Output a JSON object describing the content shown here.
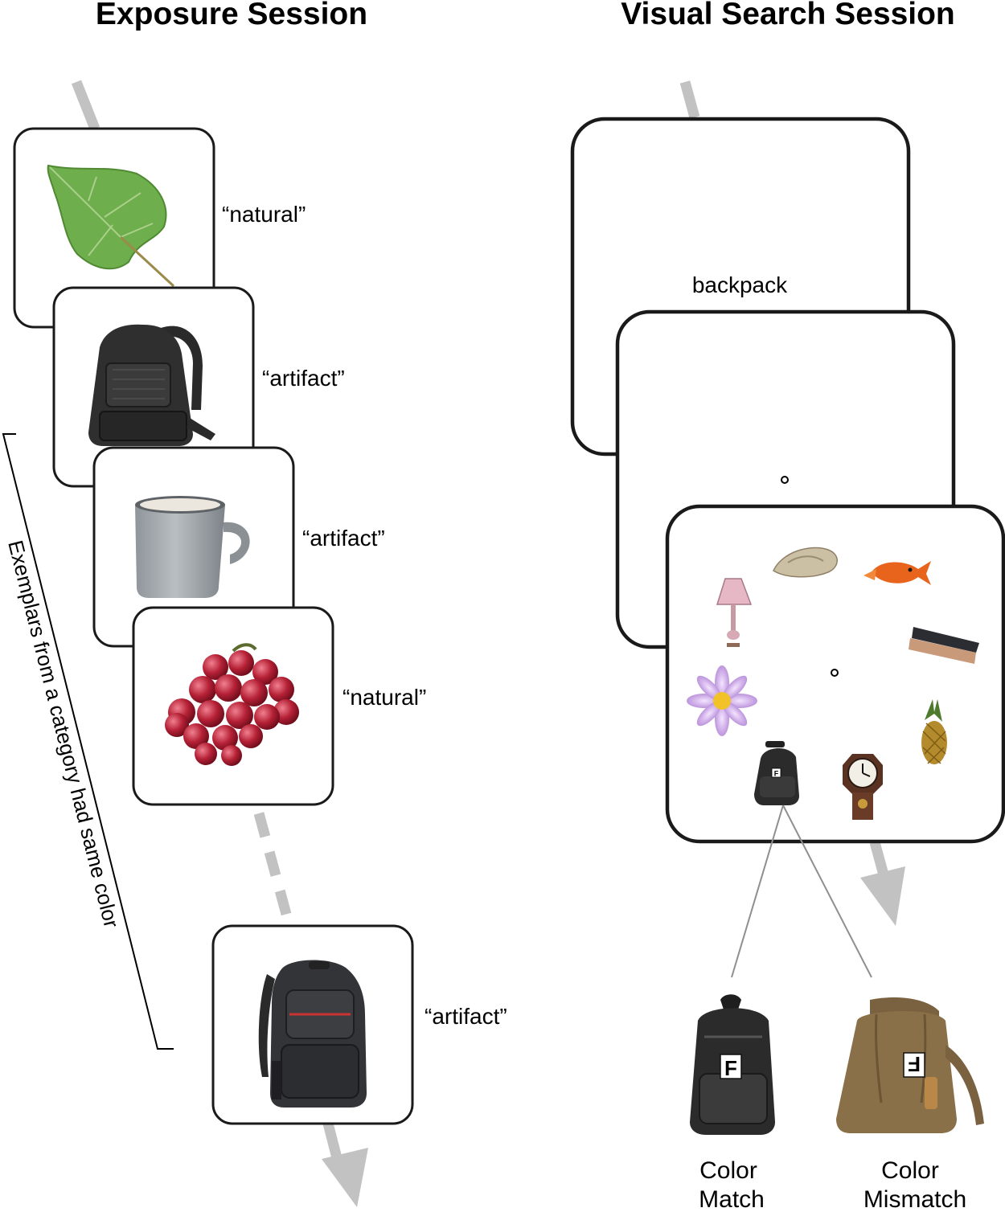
{
  "exposure": {
    "title": "Exposure Session",
    "trials": [
      {
        "image": "leaf-icon",
        "response": "“natural”"
      },
      {
        "image": "backpack-icon",
        "response": "“artifact”"
      },
      {
        "image": "mug-icon",
        "response": "“artifact”"
      },
      {
        "image": "grapes-icon",
        "response": "“natural”"
      },
      {
        "image": "backpack-icon",
        "response": "“artifact”"
      }
    ],
    "bracket_label": "Exemplars from a category had same color"
  },
  "search": {
    "title": "Visual Search Session",
    "cue_word": "backpack",
    "search_items": [
      "shell-icon",
      "goldfish-icon",
      "lamp-icon",
      "brush-icon",
      "lotus-icon",
      "pineapple-icon",
      "backpack-icon",
      "clock-icon"
    ],
    "target_letter": "F",
    "conditions": [
      {
        "line1": "Color",
        "line2": "Match",
        "color": "#2b2b2b"
      },
      {
        "line1": "Color",
        "line2": "Mismatch",
        "color": "#8a7048"
      }
    ]
  },
  "colors": {
    "arrow": "#c2c2c2",
    "card_stroke": "#1a1a1a"
  }
}
